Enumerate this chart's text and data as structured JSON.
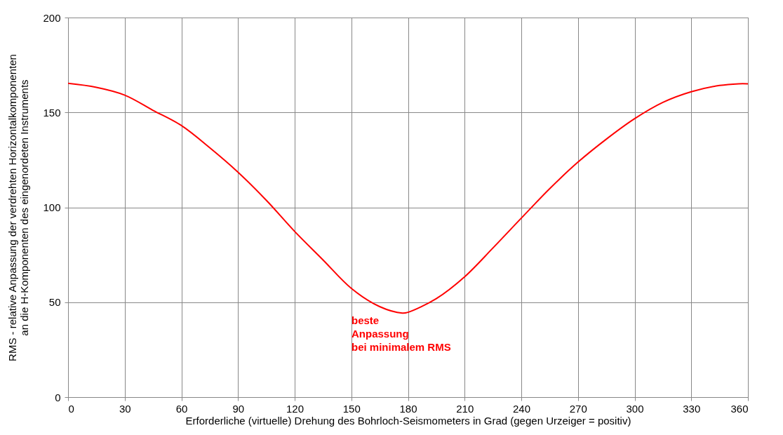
{
  "chart_data": {
    "type": "line",
    "xlabel": "Erforderliche (virtuelle) Drehung des Bohrloch-Seismometers in Grad (gegen Urzeiger = positiv)",
    "ylabel": "RMS - relative Anpassung der verdrehten Horizontalkomponenten\nan die H-Komponenten des eingenordeten Instruments",
    "x": [
      0,
      15,
      30,
      45,
      60,
      75,
      90,
      105,
      120,
      135,
      150,
      165,
      177,
      180,
      195,
      210,
      225,
      240,
      255,
      270,
      285,
      300,
      315,
      330,
      345,
      355,
      360
    ],
    "series": [
      {
        "color": "#ff0000",
        "values": [
          165.3,
          163.2,
          159.1,
          151.1,
          143.1,
          131.4,
          118.5,
          103.7,
          87.3,
          72.3,
          57.3,
          47.7,
          44.3,
          44.7,
          51.9,
          63.4,
          78.6,
          94.3,
          109.8,
          123.8,
          135.9,
          146.7,
          155.3,
          160.9,
          164.2,
          165.1,
          165.1
        ]
      }
    ],
    "xlim": [
      0,
      360
    ],
    "xticks": [
      0,
      30,
      60,
      90,
      120,
      150,
      180,
      210,
      240,
      270,
      300,
      330,
      360
    ],
    "ylim": [
      0,
      200
    ],
    "yticks": [
      0,
      50,
      100,
      150,
      200
    ],
    "grid": true,
    "marker": "none",
    "line_style": "solid",
    "annotations": [
      "beste\nAnpassung\nbei minimalem RMS"
    ]
  }
}
